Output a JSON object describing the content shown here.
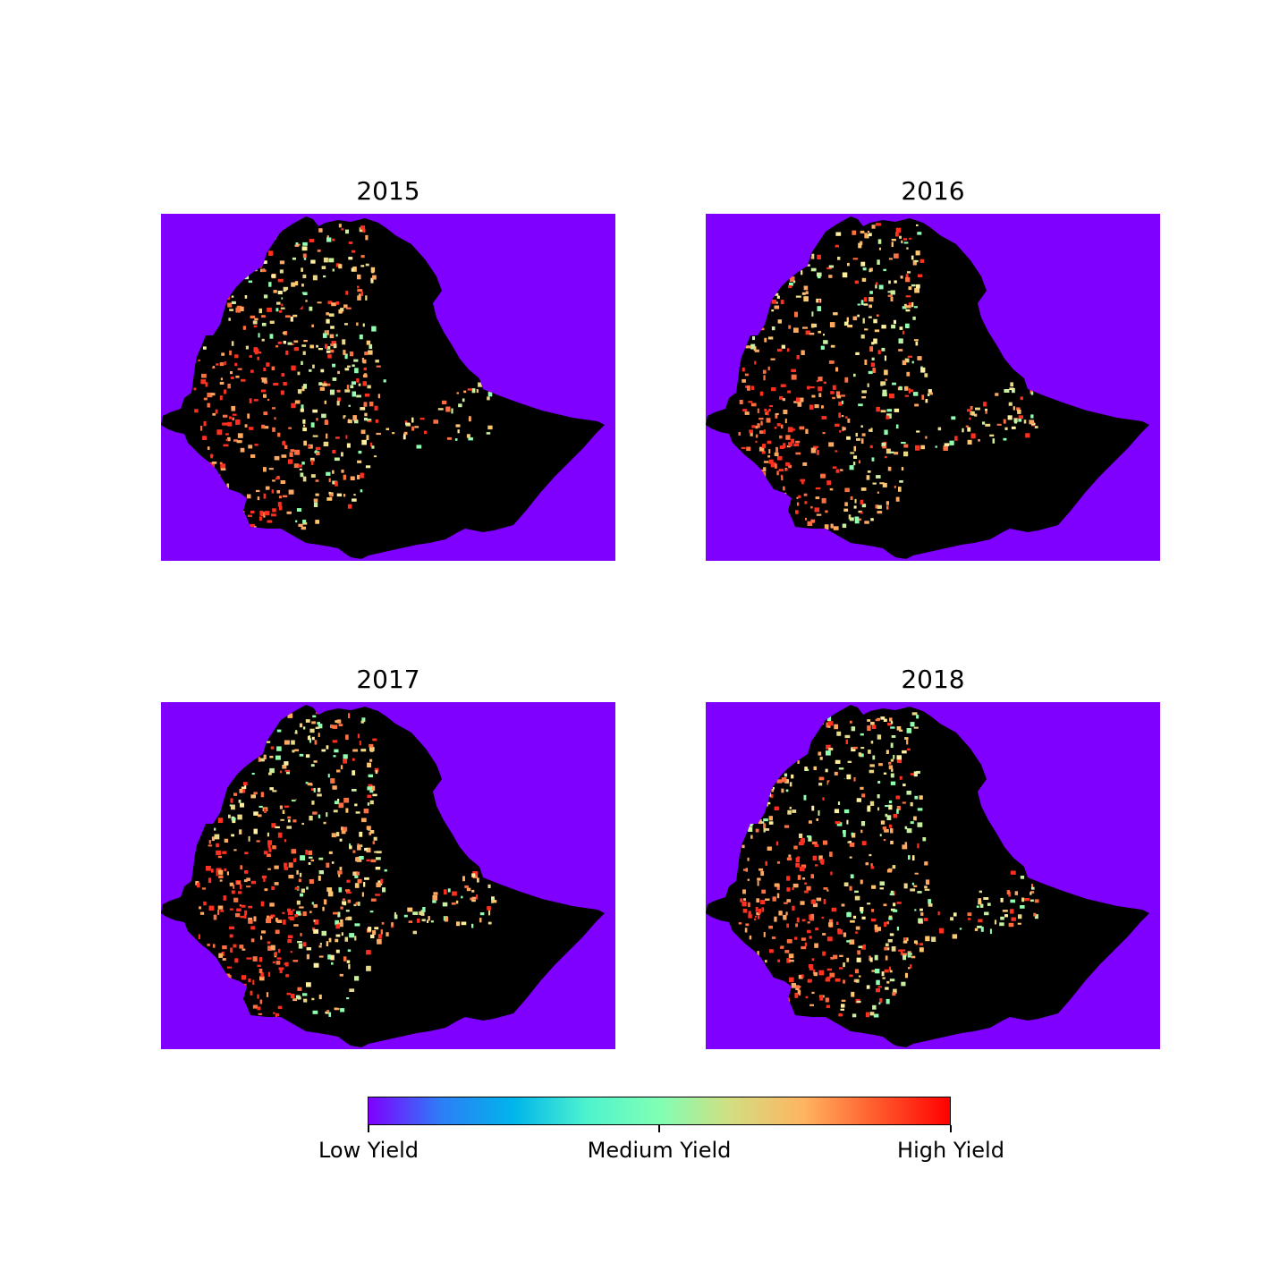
{
  "panels": [
    {
      "title": "2015"
    },
    {
      "title": "2016"
    },
    {
      "title": "2017"
    },
    {
      "title": "2018"
    }
  ],
  "colorbar": {
    "colors": [
      "#7f00ff",
      "#2c7ef7",
      "#00b5eb",
      "#4df3ce",
      "#80ffb4",
      "#d4dd80",
      "#ffb360",
      "#ff5a2c",
      "#ff0000"
    ],
    "tick_labels": [
      "Low Yield",
      "Medium Yield",
      "High Yield"
    ]
  },
  "palette": {
    "background": "#7f00ff",
    "no_data": "#000000"
  }
}
